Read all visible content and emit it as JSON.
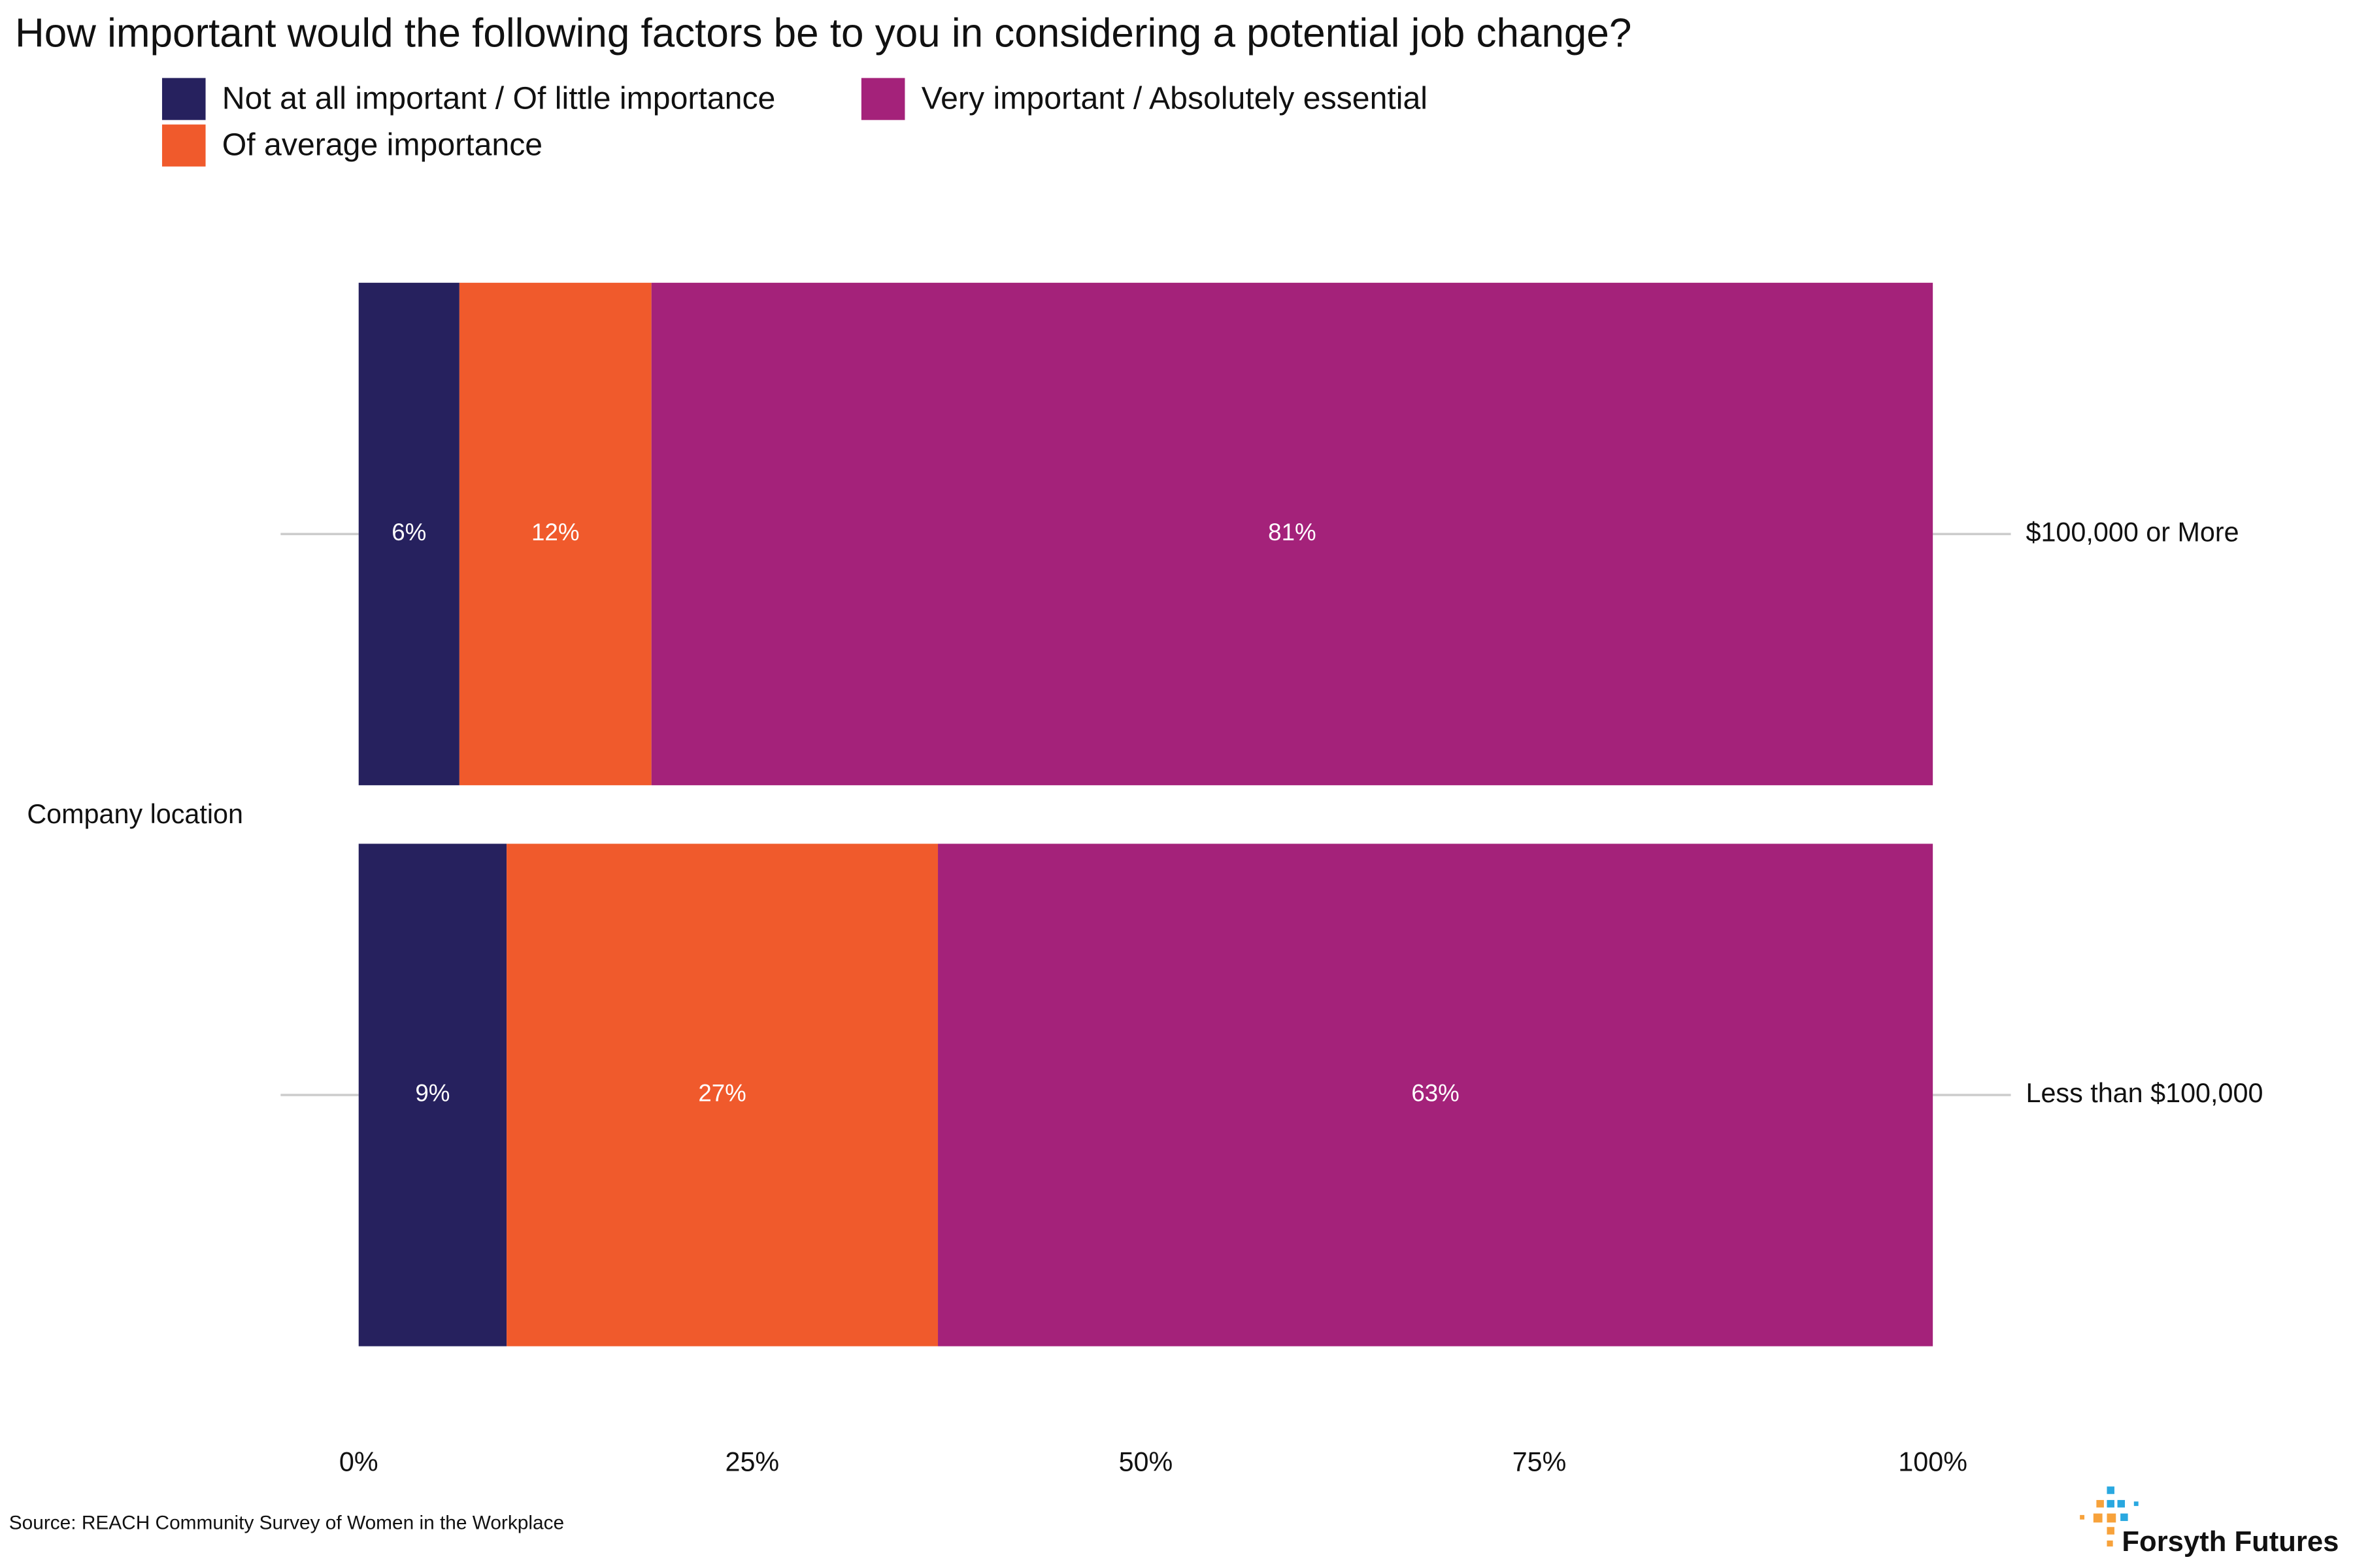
{
  "chart_data": {
    "type": "stacked-barh",
    "title": "How important would the following factors be to you in considering a potential job change?",
    "y_label": "Company location",
    "source": "Source: REACH Community Survey of Women in the Workplace",
    "brand": "Forsyth Futures",
    "categories": [
      "$100,000 or More",
      "Less than $100,000"
    ],
    "series": [
      {
        "name": "Not at all important / Of little importance",
        "color": "#26215e",
        "values": [
          6.4,
          9.4
        ],
        "value_labels": [
          "6%",
          "9%"
        ]
      },
      {
        "name": "Of average importance",
        "color": "#f05a2c",
        "values": [
          12.2,
          27.4
        ],
        "value_labels": [
          "12%",
          "27%"
        ]
      },
      {
        "name": "Very important / Absolutely essential",
        "color": "#a4227a",
        "values": [
          81.4,
          63.2
        ],
        "value_labels": [
          "81%",
          "63%"
        ]
      }
    ],
    "xlim": [
      0,
      100
    ],
    "xticks": [
      {
        "value": 0,
        "label": "0%"
      },
      {
        "value": 25,
        "label": "25%"
      },
      {
        "value": 50,
        "label": "50%"
      },
      {
        "value": 75,
        "label": "75%"
      },
      {
        "value": 100,
        "label": "100%"
      }
    ]
  }
}
